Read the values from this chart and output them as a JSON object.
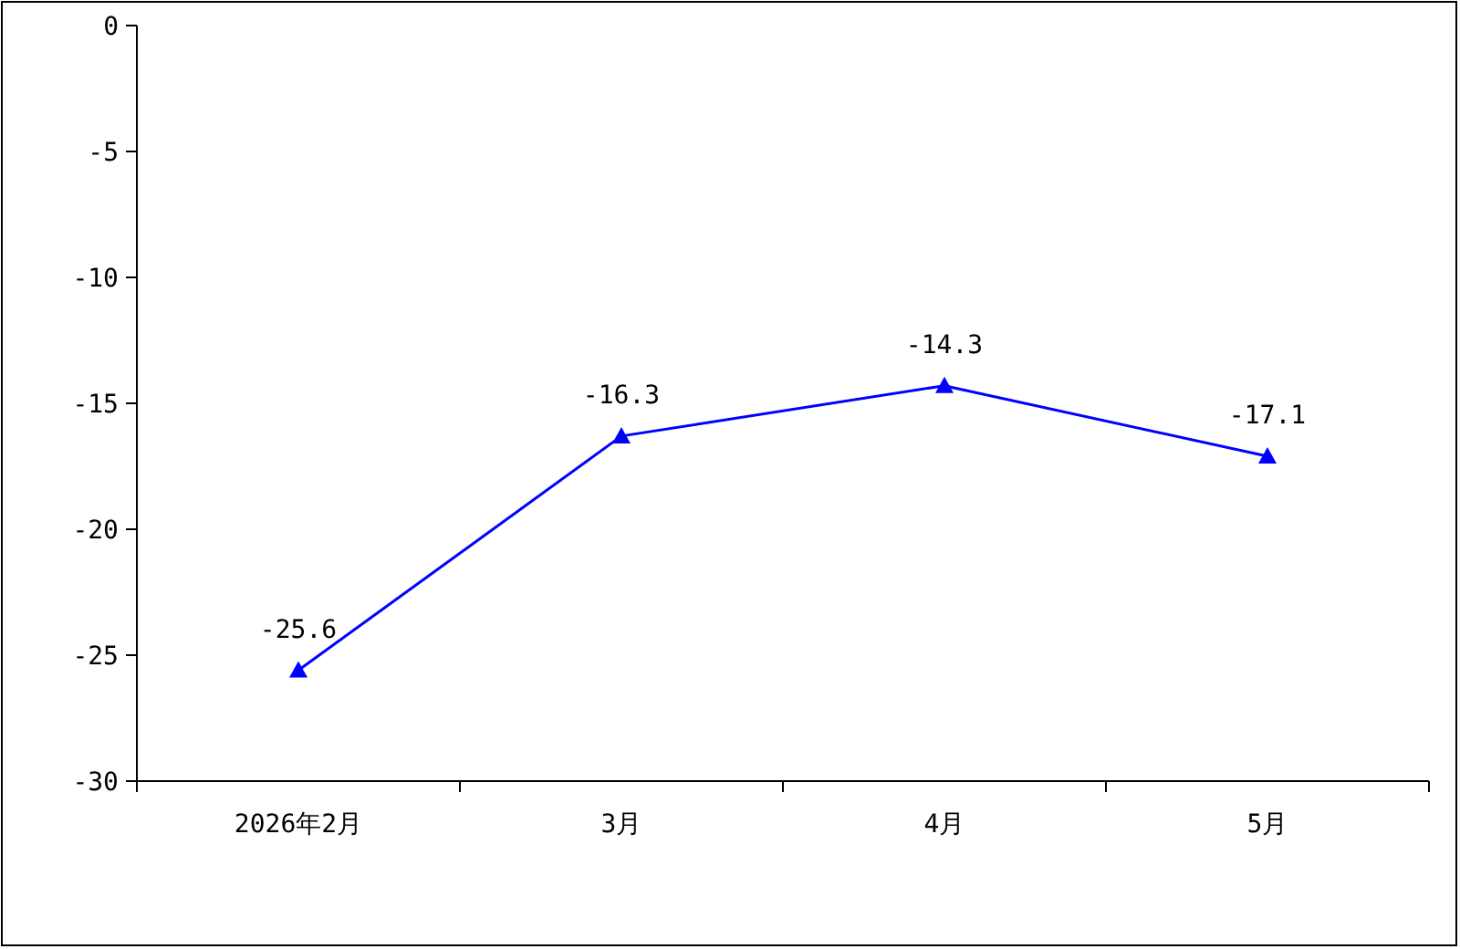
{
  "chart_data": {
    "type": "line",
    "categories": [
      "2026年2月",
      "3月",
      "4月",
      "5月"
    ],
    "series": [
      {
        "color": "#0000ff",
        "values": [
          -25.6,
          -16.3,
          -14.3,
          -17.1
        ]
      }
    ],
    "ylim": [
      -30,
      0
    ],
    "yticks": [
      0,
      -5,
      -10,
      -15,
      -20,
      -25,
      -30
    ],
    "marker": "triangle",
    "line_style": "solid",
    "data_labels": true,
    "grid": false
  }
}
